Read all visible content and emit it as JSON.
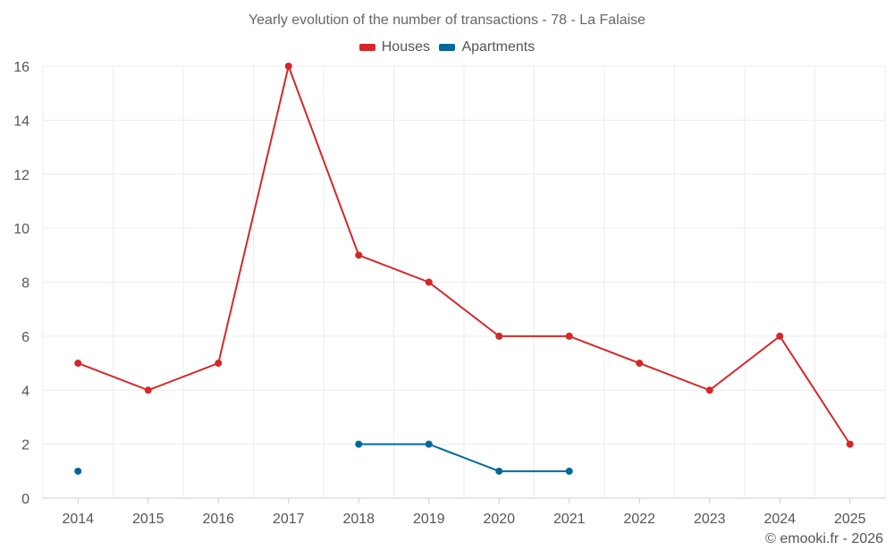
{
  "chart_data": {
    "type": "line",
    "title": "Yearly evolution of the number of transactions - 78 - La Falaise",
    "categories": [
      "2014",
      "2015",
      "2016",
      "2017",
      "2018",
      "2019",
      "2020",
      "2021",
      "2022",
      "2023",
      "2024",
      "2025"
    ],
    "series": [
      {
        "name": "Houses",
        "color": "#d62728",
        "values": [
          5,
          4,
          5,
          16,
          9,
          8,
          6,
          6,
          5,
          4,
          6,
          2
        ]
      },
      {
        "name": "Apartments",
        "color": "#00699b",
        "values": [
          1,
          null,
          null,
          null,
          2,
          2,
          1,
          1,
          null,
          null,
          null,
          null
        ]
      }
    ],
    "ylim": [
      0,
      16
    ],
    "yticks": [
      0,
      2,
      4,
      6,
      8,
      10,
      12,
      14,
      16
    ],
    "xlabel": "",
    "ylabel": "",
    "grid": true,
    "legend": "top-center"
  },
  "credit": "© emooki.fr - 2026"
}
